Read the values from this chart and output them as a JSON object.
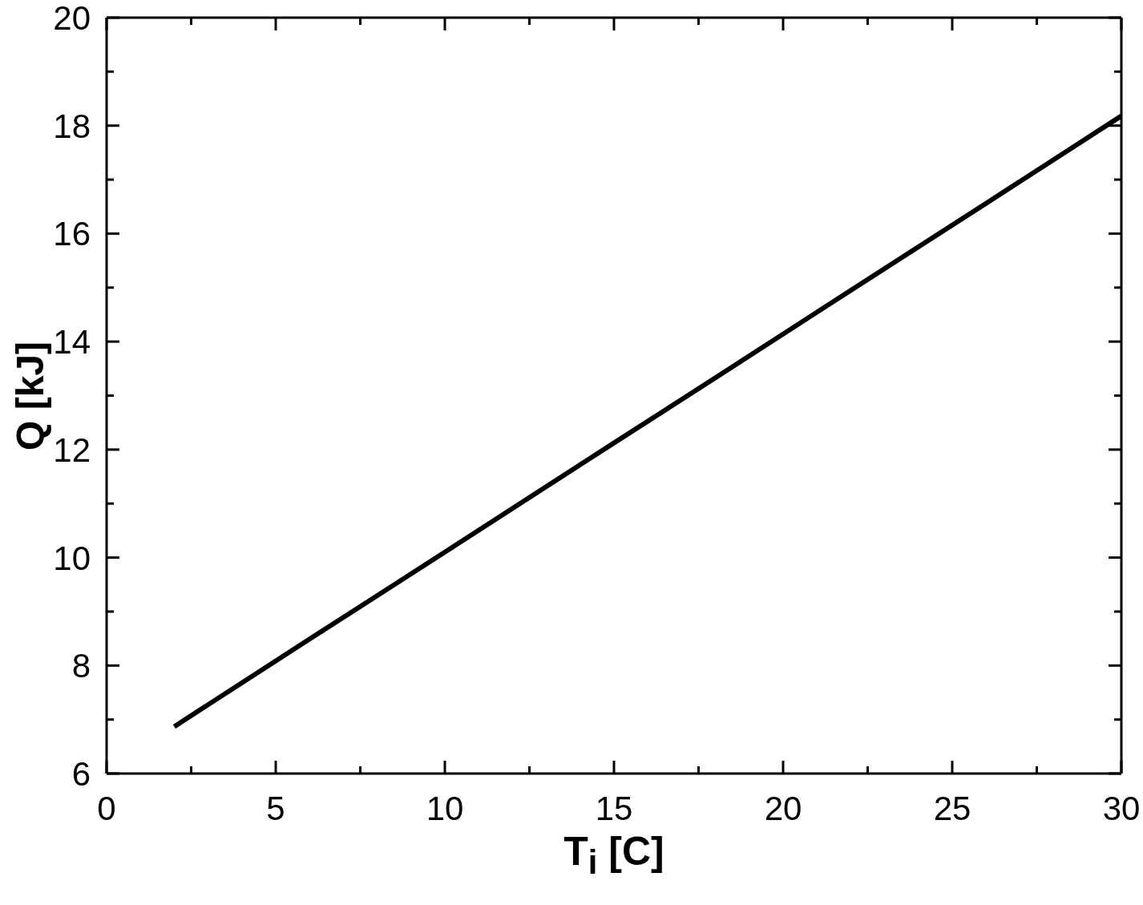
{
  "chart_data": {
    "type": "line",
    "xlabel": "T$_{i}$ [C]",
    "ylabel": "Q [kJ]",
    "color": "#000000",
    "x": [
      2,
      6,
      10,
      14,
      18,
      22,
      26,
      30
    ],
    "values": [
      6.87,
      8.49,
      10.1,
      11.72,
      13.33,
      14.95,
      16.56,
      18.18
    ],
    "xlim": [
      0,
      30
    ],
    "xticks": [
      0,
      {
        "value": 2.5,
        "label": null
      },
      5,
      {
        "value": 7.5,
        "label": null
      },
      10,
      {
        "value": 12.5,
        "label": null
      },
      15,
      {
        "value": 17.5,
        "label": null
      },
      20,
      {
        "value": 22.5,
        "label": null
      },
      25,
      {
        "value": 27.5,
        "label": null
      },
      30
    ],
    "ylim": [
      6,
      20
    ],
    "yticks": [
      6,
      {
        "value": 7,
        "label": null
      },
      8,
      {
        "value": 9,
        "label": null
      },
      10,
      {
        "value": 11,
        "label": null
      },
      12,
      {
        "value": 13,
        "label": null
      },
      14,
      {
        "value": 15,
        "label": null
      },
      16,
      {
        "value": 17,
        "label": null
      },
      18,
      {
        "value": 19,
        "label": null
      },
      20
    ]
  }
}
